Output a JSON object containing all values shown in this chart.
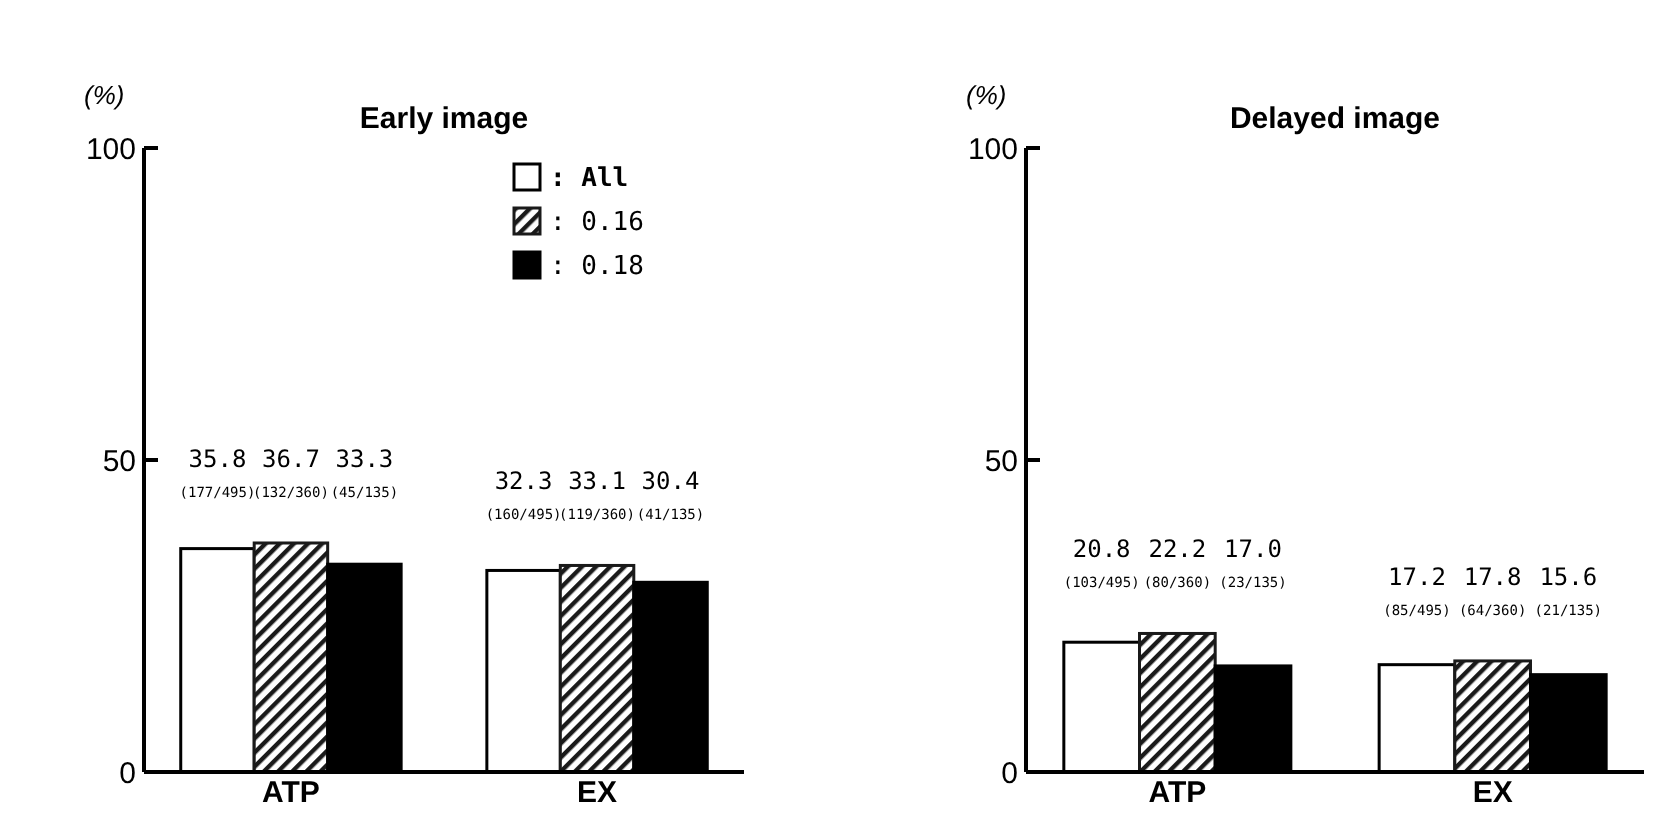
{
  "chart_data": [
    {
      "type": "bar",
      "title": "Early image",
      "ylabel": "(%)",
      "categories": [
        "ATP",
        "EX"
      ],
      "ylim": [
        0,
        100
      ],
      "yticks": [
        0,
        50,
        100
      ],
      "grid": false,
      "legend": "top right",
      "series": [
        {
          "name": ": All",
          "color": "#ffffff",
          "values": [
            35.8,
            32.3
          ],
          "value_labels": [
            "35.8\n(177/495)",
            "32.3\n(160/495)"
          ]
        },
        {
          "name": ": 0.16",
          "color": "#1a1a1a",
          "values": [
            36.7,
            33.1
          ],
          "value_labels": [
            "36.7\n(132/360)",
            "33.1\n(119/360)"
          ]
        },
        {
          "name": ": 0.18",
          "color": "#000000",
          "values": [
            33.3,
            30.4
          ],
          "value_labels": [
            "33.3\n(45/135)",
            "30.4\n(41/135)"
          ]
        }
      ]
    },
    {
      "type": "bar",
      "title": "Delayed image",
      "ylabel": "(%)",
      "categories": [
        "ATP",
        "EX"
      ],
      "ylim": [
        0,
        100
      ],
      "yticks": [
        0,
        50,
        100
      ],
      "grid": false,
      "legend": false,
      "series": [
        {
          "color": "#ffffff",
          "values": [
            20.8,
            17.2
          ],
          "value_labels": [
            "20.8\n(103/495)",
            "17.2\n(85/495)"
          ]
        },
        {
          "color": "#1a1a1a",
          "values": [
            22.2,
            17.8
          ],
          "value_labels": [
            "22.2\n(80/360)",
            "17.8\n(64/360)"
          ]
        },
        {
          "color": "#000000",
          "values": [
            17.0,
            15.6
          ],
          "value_labels": [
            "17.0\n(23/135)",
            "15.6\n(21/135)"
          ]
        }
      ]
    }
  ]
}
